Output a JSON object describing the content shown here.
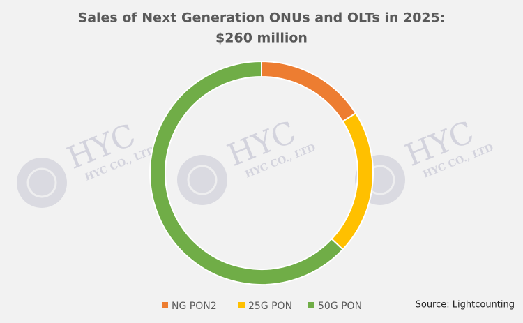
{
  "chart_data": {
    "type": "donut",
    "title": "Sales of Next Generation ONUs and OLTs in 2025:",
    "subtitle": "$260 million",
    "categories": [
      "NG PON2",
      "25G PON",
      "50G PON"
    ],
    "values": [
      16,
      21,
      63
    ],
    "colors": [
      "#ed7d31",
      "#ffc000",
      "#70ad47"
    ],
    "legend": "bottom",
    "source": "Source: Lightcounting"
  },
  "watermark": {
    "brand": "HYC",
    "company": "HYC CO., LTD"
  }
}
